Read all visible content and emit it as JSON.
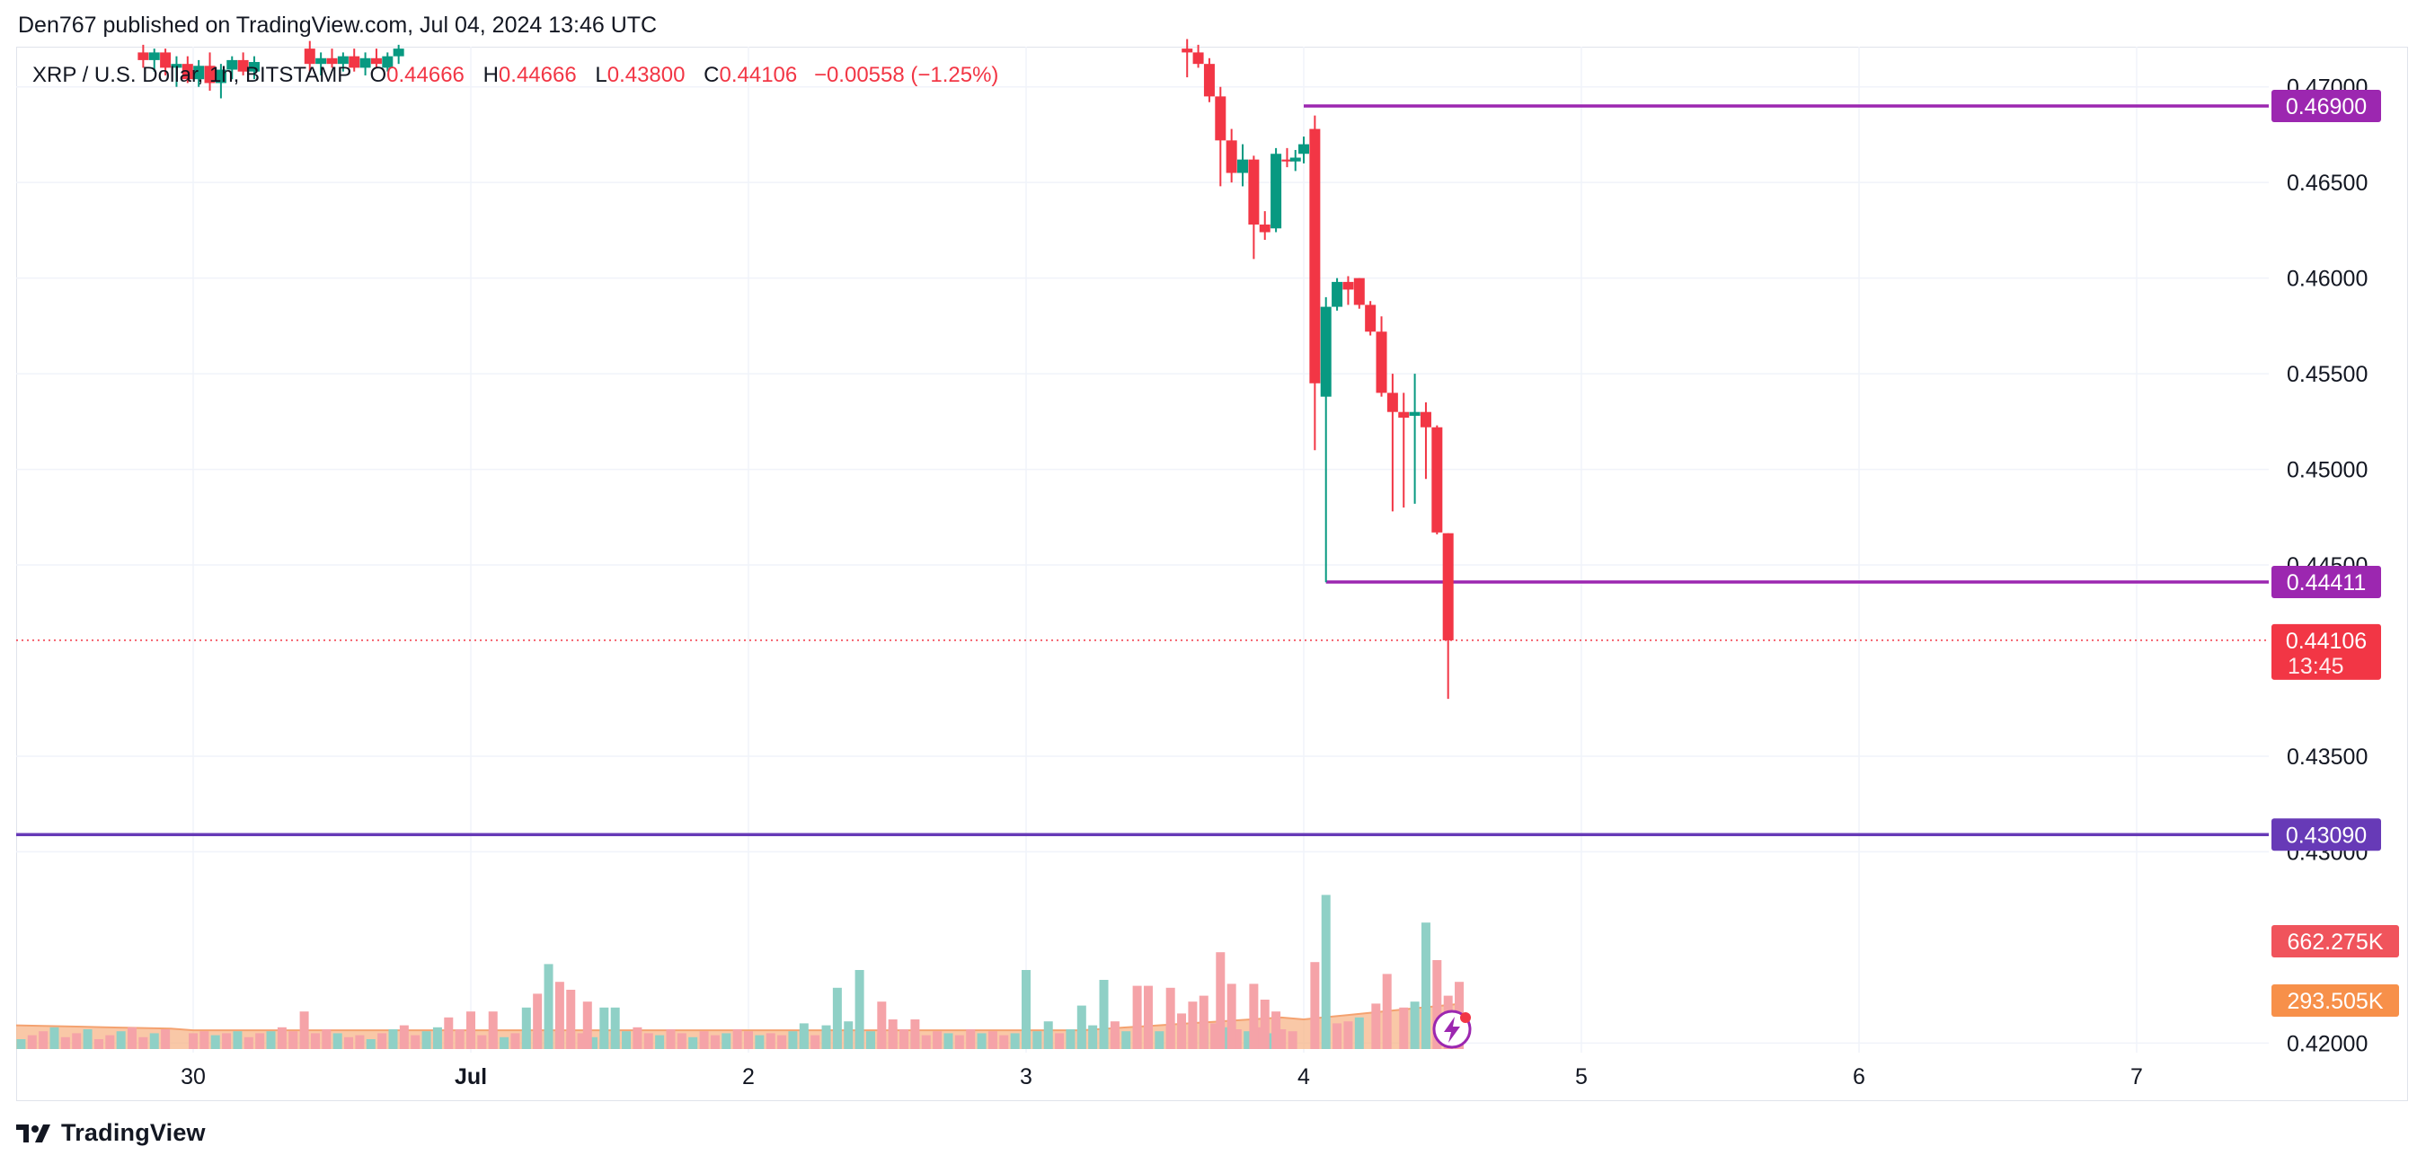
{
  "header": {
    "published_by": "Den767 published on TradingView.com, Jul 04, 2024 13:46 UTC"
  },
  "legend": {
    "symbol": "XRP / U.S. Dollar, 1h, BITSTAMP",
    "open_label": "O",
    "open": "0.44666",
    "high_label": "H",
    "high": "0.44666",
    "low_label": "L",
    "low": "0.43800",
    "close_label": "C",
    "close": "0.44106",
    "change": "−0.00558 (−1.25%)"
  },
  "footer": {
    "brand": "TradingView"
  },
  "colors": {
    "up": "#089981",
    "down": "#f23645",
    "vol_up": "#8fd0c6",
    "vol_down": "#f5a3a8",
    "level": "#7b1fa2",
    "level_main": "#5e35b1",
    "vol_avg": "#f7b68a",
    "vol_avg_line": "#f4a270",
    "grid": "#f0f3fa",
    "last_price": "#f23645"
  },
  "chart_data": {
    "type": "candlestick",
    "timeframe": "1h",
    "x_ticks": [
      "30",
      "Jul",
      "2",
      "3",
      "4",
      "5",
      "6",
      "7"
    ],
    "y_ticks": [
      "0.47000",
      "0.46500",
      "0.46000",
      "0.45500",
      "0.45000",
      "0.44500",
      "0.43500",
      "0.43000",
      "0.42000"
    ],
    "ylim": [
      0.4195,
      0.4721
    ],
    "horizontal_levels": [
      {
        "label": "0.46900",
        "price": 0.469,
        "from_day": 4.0,
        "color": "#9c27b0"
      },
      {
        "label": "0.44411",
        "price": 0.44411,
        "from_day": 4.08,
        "color": "#9c27b0"
      },
      {
        "label": "0.43090",
        "price": 0.4309,
        "from_day": 0,
        "color": "#673ab7"
      }
    ],
    "last_price": {
      "label": "0.44106",
      "countdown": "13:45",
      "price": 0.44106
    },
    "volume_badges": [
      {
        "label": "662.275K",
        "color": "#f0545c"
      },
      {
        "label": "293.505K",
        "color": "#f7904a"
      }
    ],
    "candles": [
      {
        "d": 3.58,
        "o": 0.472,
        "h": 0.4725,
        "l": 0.4705,
        "c": 0.4718
      },
      {
        "d": 3.62,
        "o": 0.4718,
        "h": 0.4722,
        "l": 0.471,
        "c": 0.4712
      },
      {
        "d": 3.66,
        "o": 0.4712,
        "h": 0.4715,
        "l": 0.4692,
        "c": 0.4695
      },
      {
        "d": 3.7,
        "o": 0.4695,
        "h": 0.47,
        "l": 0.4648,
        "c": 0.4672
      },
      {
        "d": 3.74,
        "o": 0.4672,
        "h": 0.4678,
        "l": 0.465,
        "c": 0.4655
      },
      {
        "d": 3.78,
        "o": 0.4655,
        "h": 0.467,
        "l": 0.4648,
        "c": 0.4662
      },
      {
        "d": 3.82,
        "o": 0.4662,
        "h": 0.4664,
        "l": 0.461,
        "c": 0.4628
      },
      {
        "d": 3.86,
        "o": 0.4628,
        "h": 0.4635,
        "l": 0.462,
        "c": 0.4624
      },
      {
        "d": 3.9,
        "o": 0.4626,
        "h": 0.4668,
        "l": 0.4624,
        "c": 0.4665
      },
      {
        "d": 3.94,
        "o": 0.4662,
        "h": 0.4668,
        "l": 0.4658,
        "c": 0.4661
      },
      {
        "d": 3.97,
        "o": 0.4661,
        "h": 0.4667,
        "l": 0.4656,
        "c": 0.4663
      },
      {
        "d": 4.0,
        "o": 0.4665,
        "h": 0.4674,
        "l": 0.466,
        "c": 0.467
      },
      {
        "d": 4.04,
        "o": 0.4678,
        "h": 0.4685,
        "l": 0.451,
        "c": 0.4545
      },
      {
        "d": 4.08,
        "o": 0.4538,
        "h": 0.459,
        "l": 0.4441,
        "c": 0.4585
      },
      {
        "d": 4.12,
        "o": 0.4585,
        "h": 0.46,
        "l": 0.4583,
        "c": 0.4598
      },
      {
        "d": 4.16,
        "o": 0.4598,
        "h": 0.4601,
        "l": 0.4586,
        "c": 0.4594
      },
      {
        "d": 4.2,
        "o": 0.46,
        "h": 0.46,
        "l": 0.4584,
        "c": 0.4586
      },
      {
        "d": 4.24,
        "o": 0.4586,
        "h": 0.4588,
        "l": 0.457,
        "c": 0.4572
      },
      {
        "d": 4.28,
        "o": 0.4572,
        "h": 0.458,
        "l": 0.4538,
        "c": 0.454
      },
      {
        "d": 4.32,
        "o": 0.454,
        "h": 0.455,
        "l": 0.4478,
        "c": 0.453
      },
      {
        "d": 4.36,
        "o": 0.453,
        "h": 0.454,
        "l": 0.448,
        "c": 0.4527
      },
      {
        "d": 4.4,
        "o": 0.4528,
        "h": 0.455,
        "l": 0.4482,
        "c": 0.453
      },
      {
        "d": 4.44,
        "o": 0.453,
        "h": 0.4535,
        "l": 0.4495,
        "c": 0.4522
      },
      {
        "d": 4.48,
        "o": 0.4522,
        "h": 0.4523,
        "l": 0.4466,
        "c": 0.4467
      },
      {
        "d": 4.52,
        "o": 0.44666,
        "h": 0.44666,
        "l": 0.438,
        "c": 0.44106
      }
    ],
    "left_candles": [
      {
        "d": -0.18,
        "o": 0.4718,
        "h": 0.4722,
        "l": 0.471,
        "c": 0.4714
      },
      {
        "d": -0.14,
        "o": 0.4714,
        "h": 0.472,
        "l": 0.4708,
        "c": 0.4718
      },
      {
        "d": -0.1,
        "o": 0.4718,
        "h": 0.472,
        "l": 0.4706,
        "c": 0.471
      },
      {
        "d": -0.06,
        "o": 0.471,
        "h": 0.4716,
        "l": 0.47,
        "c": 0.4712
      },
      {
        "d": -0.02,
        "o": 0.4712,
        "h": 0.4716,
        "l": 0.4702,
        "c": 0.4704
      },
      {
        "d": 0.02,
        "o": 0.4704,
        "h": 0.4714,
        "l": 0.47,
        "c": 0.4711
      },
      {
        "d": 0.06,
        "o": 0.4711,
        "h": 0.4718,
        "l": 0.4698,
        "c": 0.4702
      },
      {
        "d": 0.1,
        "o": 0.4702,
        "h": 0.4712,
        "l": 0.4694,
        "c": 0.4709
      },
      {
        "d": 0.14,
        "o": 0.4709,
        "h": 0.4716,
        "l": 0.4704,
        "c": 0.4714
      },
      {
        "d": 0.18,
        "o": 0.4714,
        "h": 0.4718,
        "l": 0.4706,
        "c": 0.4708
      },
      {
        "d": 0.22,
        "o": 0.4708,
        "h": 0.4716,
        "l": 0.4704,
        "c": 0.4713
      },
      {
        "d": 0.42,
        "o": 0.472,
        "h": 0.4724,
        "l": 0.4708,
        "c": 0.4712
      },
      {
        "d": 0.46,
        "o": 0.4712,
        "h": 0.4718,
        "l": 0.4706,
        "c": 0.4715
      },
      {
        "d": 0.5,
        "o": 0.4715,
        "h": 0.472,
        "l": 0.471,
        "c": 0.4712
      },
      {
        "d": 0.54,
        "o": 0.4712,
        "h": 0.4718,
        "l": 0.4708,
        "c": 0.4716
      },
      {
        "d": 0.58,
        "o": 0.4716,
        "h": 0.472,
        "l": 0.4708,
        "c": 0.471
      },
      {
        "d": 0.62,
        "o": 0.471,
        "h": 0.4718,
        "l": 0.4706,
        "c": 0.4715
      },
      {
        "d": 0.66,
        "o": 0.4715,
        "h": 0.472,
        "l": 0.471,
        "c": 0.4712
      },
      {
        "d": 0.7,
        "o": 0.471,
        "h": 0.4718,
        "l": 0.4708,
        "c": 0.4716
      },
      {
        "d": 0.74,
        "o": 0.4716,
        "h": 0.4722,
        "l": 0.4712,
        "c": 0.472
      }
    ],
    "volume": [
      {
        "d": 0.0,
        "v": 0.8,
        "up": false
      },
      {
        "d": 0.04,
        "v": 0.9,
        "up": false
      },
      {
        "d": 0.08,
        "v": 0.7,
        "up": true
      },
      {
        "d": 0.12,
        "v": 0.8,
        "up": false
      },
      {
        "d": 0.16,
        "v": 0.9,
        "up": true
      },
      {
        "d": 0.2,
        "v": 0.6,
        "up": false
      },
      {
        "d": 0.24,
        "v": 0.8,
        "up": false
      },
      {
        "d": 0.28,
        "v": 0.9,
        "up": true
      },
      {
        "d": 0.32,
        "v": 1.1,
        "up": false
      },
      {
        "d": 0.36,
        "v": 0.9,
        "up": false
      },
      {
        "d": 0.4,
        "v": 0.7,
        "up": true
      },
      {
        "d": 0.44,
        "v": 0.8,
        "up": false
      },
      {
        "d": 0.48,
        "v": 1.0,
        "up": false
      },
      {
        "d": 0.52,
        "v": 0.8,
        "up": true
      },
      {
        "d": 0.56,
        "v": 0.6,
        "up": false
      },
      {
        "d": 0.6,
        "v": 0.7,
        "up": false
      },
      {
        "d": 0.64,
        "v": 0.5,
        "up": true
      },
      {
        "d": 0.68,
        "v": 0.8,
        "up": false
      },
      {
        "d": 0.72,
        "v": 1.0,
        "up": true
      },
      {
        "d": 0.76,
        "v": 1.2,
        "up": false
      },
      {
        "d": 0.8,
        "v": 0.7,
        "up": false
      },
      {
        "d": 0.84,
        "v": 0.9,
        "up": true
      },
      {
        "d": 0.88,
        "v": 1.1,
        "up": true
      },
      {
        "d": 0.92,
        "v": 1.6,
        "up": false
      },
      {
        "d": 0.96,
        "v": 1.0,
        "up": false
      },
      {
        "d": 1.0,
        "v": 0.8,
        "up": true
      },
      {
        "d": 1.04,
        "v": 0.7,
        "up": false
      },
      {
        "d": 1.08,
        "v": 0.9,
        "up": false
      },
      {
        "d": 1.12,
        "v": 0.6,
        "up": true
      },
      {
        "d": 1.16,
        "v": 0.8,
        "up": false
      },
      {
        "d": 1.2,
        "v": 0.7,
        "up": false
      },
      {
        "d": 1.24,
        "v": 0.8,
        "up": true
      },
      {
        "d": 1.28,
        "v": 1.0,
        "up": false
      },
      {
        "d": 1.32,
        "v": 0.9,
        "up": true
      },
      {
        "d": 1.36,
        "v": 0.7,
        "up": false
      },
      {
        "d": 1.4,
        "v": 0.8,
        "up": false
      },
      {
        "d": 1.44,
        "v": 0.6,
        "up": true
      },
      {
        "d": 1.48,
        "v": 0.5,
        "up": false
      },
      {
        "d": 1.52,
        "v": 0.7,
        "up": false
      },
      {
        "d": 1.56,
        "v": 0.9,
        "up": true
      },
      {
        "d": 1.6,
        "v": 1.1,
        "up": false
      },
      {
        "d": 1.64,
        "v": 0.8,
        "up": false
      },
      {
        "d": 1.68,
        "v": 0.7,
        "up": true
      },
      {
        "d": 1.72,
        "v": 1.0,
        "up": false
      },
      {
        "d": 1.76,
        "v": 0.8,
        "up": false
      },
      {
        "d": 1.8,
        "v": 0.6,
        "up": true
      },
      {
        "d": 1.84,
        "v": 0.9,
        "up": false
      },
      {
        "d": 1.88,
        "v": 0.7,
        "up": false
      },
      {
        "d": 1.92,
        "v": 0.8,
        "up": true
      },
      {
        "d": 1.96,
        "v": 1.0,
        "up": false
      },
      {
        "d": 2.0,
        "v": 0.9,
        "up": false
      },
      {
        "d": 2.04,
        "v": 0.7,
        "up": true
      },
      {
        "d": 2.08,
        "v": 0.8,
        "up": false
      },
      {
        "d": 2.12,
        "v": 0.7,
        "up": false
      },
      {
        "d": 2.16,
        "v": 0.9,
        "up": true
      },
      {
        "d": 2.2,
        "v": 1.0,
        "up": true
      },
      {
        "d": 2.24,
        "v": 0.7,
        "up": false
      },
      {
        "d": 2.28,
        "v": 1.2,
        "up": true
      },
      {
        "d": 2.32,
        "v": 0.8,
        "up": false
      },
      {
        "d": 2.36,
        "v": 1.4,
        "up": true
      },
      {
        "d": 2.4,
        "v": 1.0,
        "up": false
      },
      {
        "d": 2.44,
        "v": 0.9,
        "up": true
      },
      {
        "d": 2.48,
        "v": 0.8,
        "up": false
      },
      {
        "d": 2.52,
        "v": 1.1,
        "up": false
      },
      {
        "d": 2.56,
        "v": 1.0,
        "up": false
      },
      {
        "d": 2.6,
        "v": 0.8,
        "up": true
      },
      {
        "d": 2.64,
        "v": 0.7,
        "up": false
      },
      {
        "d": 2.68,
        "v": 0.9,
        "up": false
      },
      {
        "d": 2.72,
        "v": 0.8,
        "up": true
      },
      {
        "d": 2.76,
        "v": 0.7,
        "up": false
      },
      {
        "d": 2.8,
        "v": 1.0,
        "up": false
      },
      {
        "d": 2.84,
        "v": 0.8,
        "up": true
      },
      {
        "d": 2.88,
        "v": 0.9,
        "up": false
      },
      {
        "d": 2.92,
        "v": 0.7,
        "up": false
      },
      {
        "d": 2.96,
        "v": 0.8,
        "up": true
      },
      {
        "d": 3.0,
        "v": 1.1,
        "up": false
      },
      {
        "d": 3.04,
        "v": 0.9,
        "up": true
      },
      {
        "d": 3.08,
        "v": 0.7,
        "up": false
      },
      {
        "d": 3.12,
        "v": 0.8,
        "up": false
      },
      {
        "d": 3.16,
        "v": 1.0,
        "up": true
      },
      {
        "d": 3.2,
        "v": 0.9,
        "up": false
      },
      {
        "d": 3.24,
        "v": 1.2,
        "up": true
      },
      {
        "d": 3.28,
        "v": 1.0,
        "up": false
      },
      {
        "d": 3.32,
        "v": 0.8,
        "up": false
      },
      {
        "d": 3.36,
        "v": 0.9,
        "up": true
      },
      {
        "d": 3.4,
        "v": 1.1,
        "up": false
      },
      {
        "d": 3.44,
        "v": 1.0,
        "up": false
      },
      {
        "d": 3.48,
        "v": 0.9,
        "up": true
      },
      {
        "d": 3.52,
        "v": 1.2,
        "up": false
      },
      {
        "d": 3.56,
        "v": 1.0,
        "up": false
      },
      {
        "d": 3.6,
        "v": 1.2,
        "up": false
      },
      {
        "d": 3.64,
        "v": 1.0,
        "up": true
      },
      {
        "d": 3.68,
        "v": 1.3,
        "up": false
      },
      {
        "d": 3.72,
        "v": 1.1,
        "up": true
      },
      {
        "d": 3.76,
        "v": 1.0,
        "up": false
      },
      {
        "d": 3.8,
        "v": 0.9,
        "up": true
      },
      {
        "d": 3.84,
        "v": 1.1,
        "up": false
      },
      {
        "d": 3.88,
        "v": 0.8,
        "up": true
      },
      {
        "d": 3.92,
        "v": 1.0,
        "up": false
      },
      {
        "d": 3.96,
        "v": 0.9,
        "up": false
      },
      {
        "d": 0.0,
        "v": 0.0,
        "up": false
      }
    ],
    "volume_spikes": [
      {
        "d": 0.4,
        "v": 1.9,
        "up": false
      },
      {
        "d": 1.0,
        "v": 1.9,
        "up": false
      },
      {
        "d": 1.08,
        "v": 1.9,
        "up": false
      },
      {
        "d": 1.2,
        "v": 2.1,
        "up": true
      },
      {
        "d": 1.24,
        "v": 2.8,
        "up": false
      },
      {
        "d": 1.28,
        "v": 4.3,
        "up": true
      },
      {
        "d": 1.32,
        "v": 3.4,
        "up": false
      },
      {
        "d": 1.36,
        "v": 3.0,
        "up": false
      },
      {
        "d": 1.42,
        "v": 2.4,
        "up": false
      },
      {
        "d": 1.48,
        "v": 2.1,
        "up": true
      },
      {
        "d": 1.52,
        "v": 2.1,
        "up": true
      },
      {
        "d": 2.2,
        "v": 1.3,
        "up": true
      },
      {
        "d": 2.32,
        "v": 3.1,
        "up": true
      },
      {
        "d": 2.4,
        "v": 4.0,
        "up": true
      },
      {
        "d": 2.48,
        "v": 2.4,
        "up": false
      },
      {
        "d": 2.52,
        "v": 1.5,
        "up": false
      },
      {
        "d": 2.6,
        "v": 1.5,
        "up": false
      },
      {
        "d": 3.0,
        "v": 4.0,
        "up": true
      },
      {
        "d": 3.08,
        "v": 1.4,
        "up": true
      },
      {
        "d": 3.2,
        "v": 2.2,
        "up": true
      },
      {
        "d": 3.28,
        "v": 3.5,
        "up": true
      },
      {
        "d": 3.32,
        "v": 1.4,
        "up": false
      },
      {
        "d": 3.4,
        "v": 3.2,
        "up": false
      },
      {
        "d": 3.44,
        "v": 3.2,
        "up": false
      },
      {
        "d": 3.52,
        "v": 3.1,
        "up": false
      },
      {
        "d": 3.56,
        "v": 1.8,
        "up": false
      },
      {
        "d": 3.6,
        "v": 2.4,
        "up": false
      },
      {
        "d": 3.64,
        "v": 2.7,
        "up": false
      },
      {
        "d": 3.7,
        "v": 4.9,
        "up": false
      },
      {
        "d": 3.74,
        "v": 3.3,
        "up": false
      },
      {
        "d": 3.82,
        "v": 3.3,
        "up": false
      },
      {
        "d": 3.86,
        "v": 2.5,
        "up": false
      },
      {
        "d": 3.9,
        "v": 1.9,
        "up": false
      },
      {
        "d": 4.04,
        "v": 4.4,
        "up": false
      },
      {
        "d": 4.08,
        "v": 7.8,
        "up": true
      },
      {
        "d": 4.12,
        "v": 1.3,
        "up": false
      },
      {
        "d": 4.16,
        "v": 1.4,
        "up": false
      },
      {
        "d": 4.2,
        "v": 1.6,
        "up": true
      },
      {
        "d": 4.26,
        "v": 2.3,
        "up": false
      },
      {
        "d": 4.3,
        "v": 3.8,
        "up": false
      },
      {
        "d": 4.36,
        "v": 2.1,
        "up": false
      },
      {
        "d": 4.4,
        "v": 2.4,
        "up": true
      },
      {
        "d": 4.44,
        "v": 6.4,
        "up": true
      },
      {
        "d": 4.48,
        "v": 4.5,
        "up": false
      },
      {
        "d": 4.52,
        "v": 2.7,
        "up": false
      },
      {
        "d": 4.56,
        "v": 3.4,
        "up": false
      }
    ]
  }
}
